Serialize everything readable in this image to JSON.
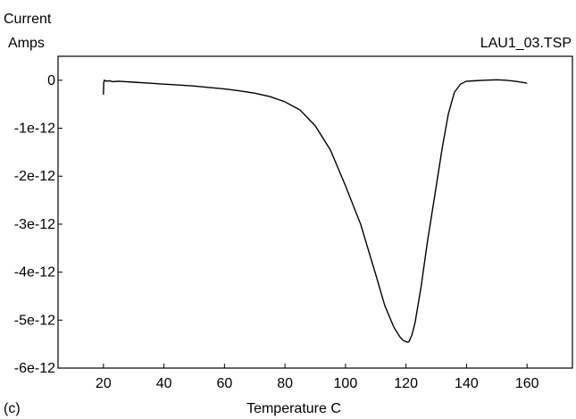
{
  "chart_data": {
    "type": "line",
    "ylabel_line1": "Current",
    "ylabel_line2": "Amps",
    "xlabel": "Temperature C",
    "file_label": "LAU1_03.TSP",
    "panel_label": "(c)",
    "xlim": [
      5,
      175
    ],
    "ylim": [
      -6e-12,
      5e-13
    ],
    "x_ticks": [
      20,
      40,
      60,
      80,
      100,
      120,
      140,
      160
    ],
    "x_tick_labels": [
      "20",
      "40",
      "60",
      "80",
      "100",
      "120",
      "140",
      "160"
    ],
    "y_ticks": [
      0,
      -1e-12,
      -2e-12,
      -3e-12,
      -4e-12,
      -5e-12,
      -6e-12
    ],
    "y_tick_labels": [
      "0",
      "-1e-12",
      "-2e-12",
      "-3e-12",
      "-4e-12",
      "-5e-12",
      "-6e-12"
    ],
    "grid": false,
    "series": [
      {
        "x": [
          20,
          20.1,
          20.3,
          21,
          22,
          23,
          25,
          30,
          35,
          40,
          45,
          50,
          55,
          60,
          65,
          70,
          75,
          80,
          85,
          90,
          95,
          100,
          105,
          110,
          113,
          116,
          118,
          119,
          120,
          120.5,
          121,
          122,
          123,
          125,
          127,
          130,
          132,
          134,
          136,
          138,
          140,
          143,
          146,
          150,
          153,
          156,
          158,
          160
        ],
        "y": [
          -3e-13,
          -5e-14,
          0.0,
          -2e-14,
          -1e-14,
          -3e-14,
          -2e-14,
          -4e-14,
          -6e-14,
          -8e-14,
          -1e-13,
          -1.2e-13,
          -1.5e-13,
          -1.8e-13,
          -2.2e-13,
          -2.7e-13,
          -3.4e-13,
          -4.5e-13,
          -6.2e-13,
          -9.5e-13,
          -1.45e-12,
          -2.2e-12,
          -3e-12,
          -4.05e-12,
          -4.7e-12,
          -5.15e-12,
          -5.35e-12,
          -5.42e-12,
          -5.45e-12,
          -5.46e-12,
          -5.45e-12,
          -5.3e-12,
          -5.05e-12,
          -4.3e-12,
          -3.4e-12,
          -2.2e-12,
          -1.4e-12,
          -7e-13,
          -2.5e-13,
          -8e-14,
          -2e-14,
          -1e-14,
          0.0,
          1e-14,
          0.0,
          -2e-14,
          -4e-14,
          -6e-14
        ]
      }
    ]
  }
}
